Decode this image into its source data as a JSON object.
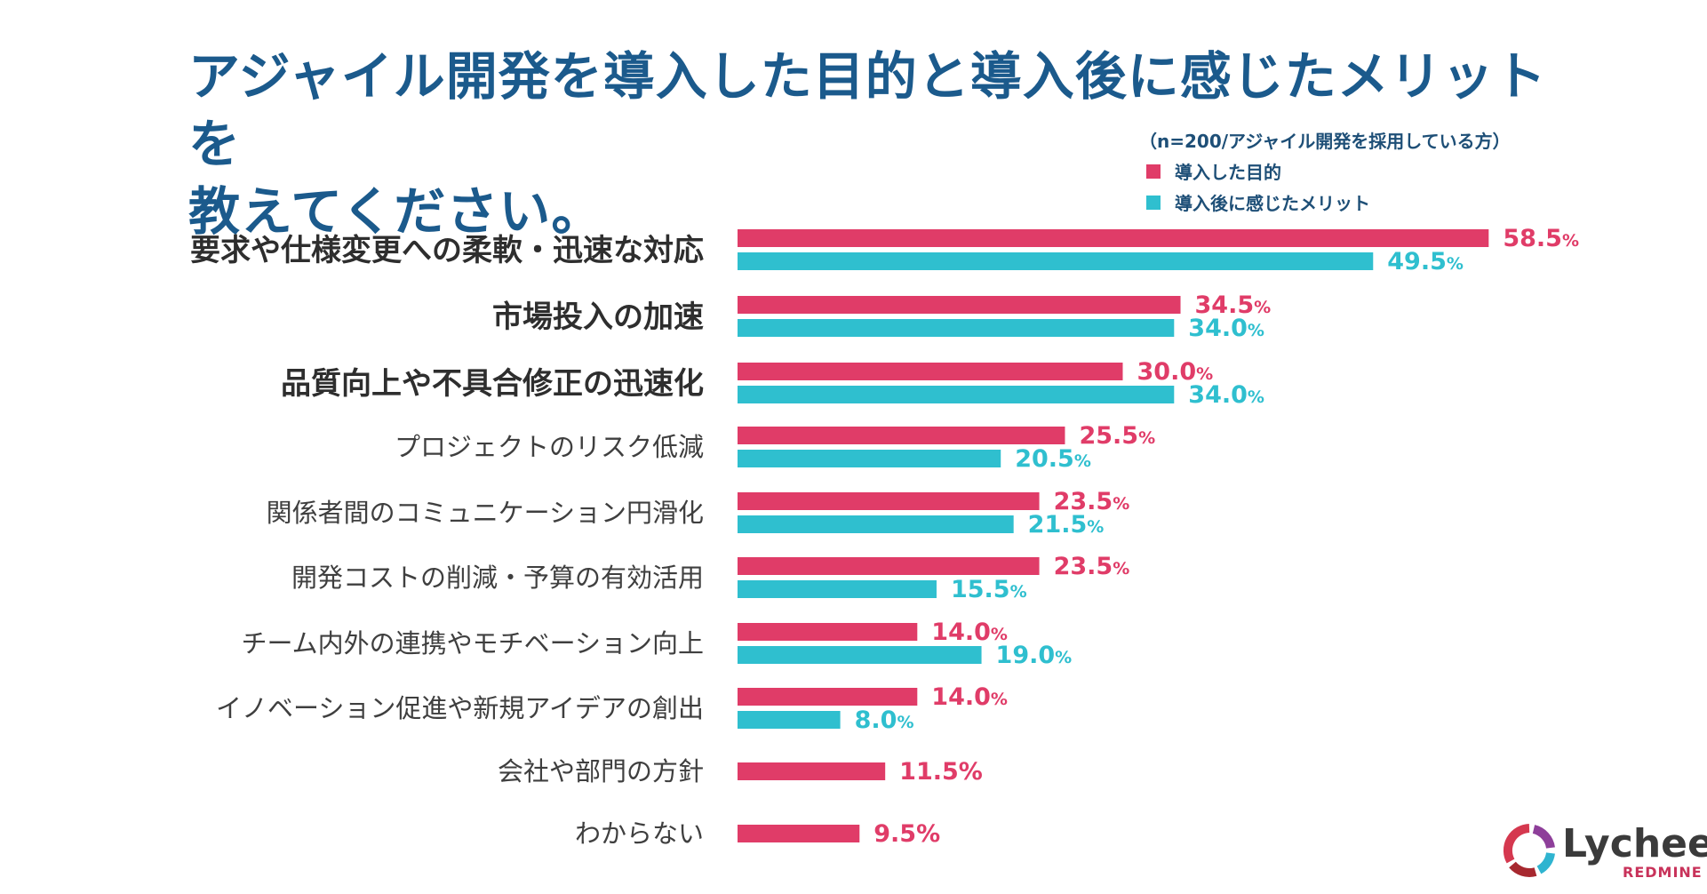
{
  "title_line1": "アジャイル開発を導入した目的と導入後に感じたメリットを",
  "title_line2": "教えてください。",
  "legend": {
    "note": "（n=200/アジャイル開発を採用している方）",
    "items": [
      {
        "label": "導入した目的",
        "color": "#e03c68"
      },
      {
        "label": "導入後に感じたメリット",
        "color": "#2fbfcf"
      }
    ]
  },
  "chart_data": {
    "type": "bar",
    "orientation": "horizontal",
    "unit": "%",
    "categories": [
      "要求や仕様変更への柔軟・迅速な対応",
      "市場投入の加速",
      "品質向上や不具合修正の迅速化",
      "プロジェクトのリスク低減",
      "関係者間のコミュニケーション円滑化",
      "開発コストの削減・予算の有効活用",
      "チーム内外の連携やモチベーション向上",
      "イノベーション促進や新規アイデアの創出",
      "会社や部門の方針",
      "わからない"
    ],
    "bold_categories": [
      0,
      1,
      2
    ],
    "series": [
      {
        "name": "導入した目的",
        "color": "#e03c68",
        "values": [
          58.5,
          34.5,
          30.0,
          25.5,
          23.5,
          23.5,
          14.0,
          14.0,
          11.5,
          9.5
        ]
      },
      {
        "name": "導入後に感じたメリット",
        "color": "#2fbfcf",
        "values": [
          49.5,
          34.0,
          34.0,
          20.5,
          21.5,
          15.5,
          19.0,
          8.0,
          null,
          null
        ]
      }
    ],
    "value_labels": [
      [
        "58.5",
        "49.5"
      ],
      [
        "34.5",
        "34.0"
      ],
      [
        "30.0",
        "34.0"
      ],
      [
        "25.5",
        "20.5"
      ],
      [
        "23.5",
        "21.5"
      ],
      [
        "23.5",
        "15.5"
      ],
      [
        "14.0",
        "19.0"
      ],
      [
        "14.0",
        "8.0"
      ],
      [
        "11.5"
      ],
      [
        "9.5"
      ]
    ],
    "xlim": [
      0,
      60
    ]
  },
  "brand": {
    "name": "Lychee",
    "sub": "REDMINE"
  }
}
